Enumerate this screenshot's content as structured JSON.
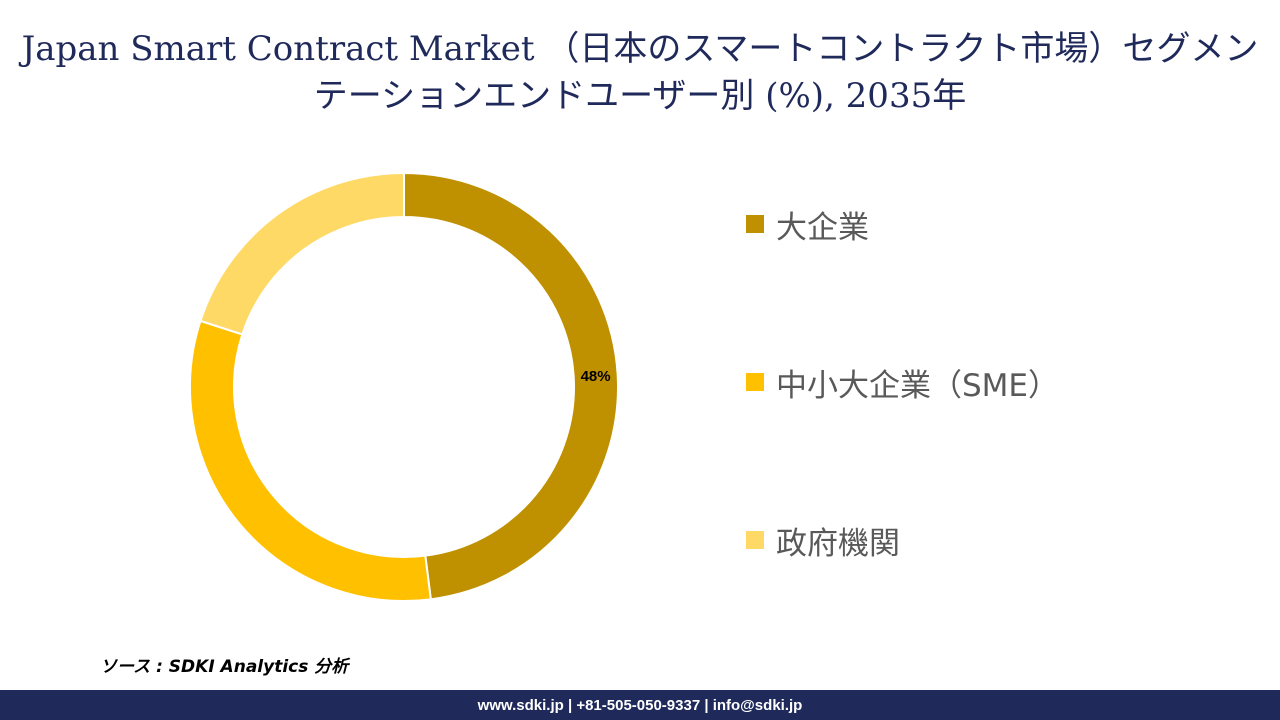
{
  "title": "Japan Smart Contract Market （日本のスマートコントラクト市場）セグメンテーションエンドユーザー別 (%), 2035年",
  "chart_data": {
    "type": "pie",
    "subtype": "donut",
    "title": "Japan Smart Contract Market （日本のスマートコントラクト市場）セグメンテーションエンドユーザー別 (%), 2035年",
    "categories": [
      "大企業",
      "中小大企業（SME）",
      "政府機関"
    ],
    "values": [
      48,
      32,
      20
    ],
    "data_labels": [
      "48%",
      "",
      ""
    ],
    "colors": [
      "#bf9000",
      "#ffc000",
      "#ffd966"
    ],
    "legend_position": "right"
  },
  "source": "ソース : SDKI Analytics 分析",
  "footer": "www.sdki.jp | +81-505-050-9337 | info@sdki.jp"
}
